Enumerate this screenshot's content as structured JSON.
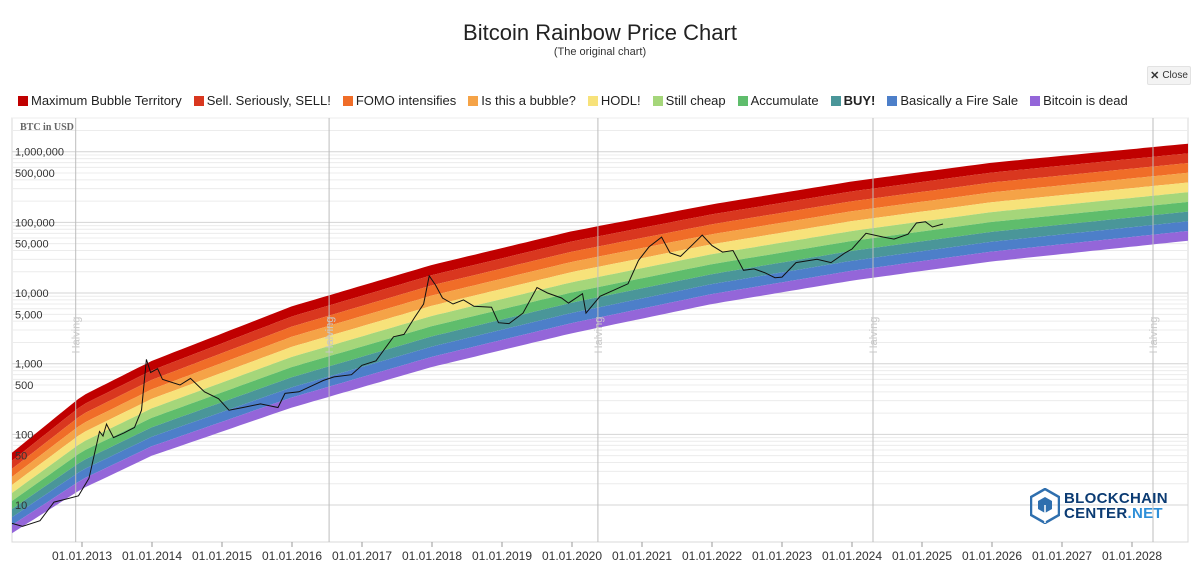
{
  "header": {
    "title": "Bitcoin Rainbow Price Chart",
    "subtitle": "(The original chart)",
    "close_label": "Close"
  },
  "legend": [
    {
      "label": "Maximum Bubble Territory",
      "color": "#c00000",
      "bold": false
    },
    {
      "label": "Sell. Seriously, SELL!",
      "color": "#d9371f",
      "bold": false
    },
    {
      "label": "FOMO intensifies",
      "color": "#f06d28",
      "bold": false
    },
    {
      "label": "Is this a bubble?",
      "color": "#f5a347",
      "bold": false
    },
    {
      "label": "HODL!",
      "color": "#f7e27a",
      "bold": false
    },
    {
      "label": "Still cheap",
      "color": "#a5d67a",
      "bold": false
    },
    {
      "label": "Accumulate",
      "color": "#5fbd6c",
      "bold": false
    },
    {
      "label": "BUY!",
      "color": "#4a9699",
      "bold": true
    },
    {
      "label": "Basically a Fire Sale",
      "color": "#4d7fc9",
      "bold": false
    },
    {
      "label": "Bitcoin is dead",
      "color": "#9466d9",
      "bold": false
    }
  ],
  "brand": {
    "line1": "BLOCKCHAIN",
    "line2": "CENTER",
    "line2_suffix": ".NET"
  },
  "chart_data": {
    "type": "line",
    "title": "Bitcoin Rainbow Price Chart",
    "ylabel": "BTC in USD",
    "yscale": "log",
    "ylim": [
      3,
      3000000
    ],
    "xlim": [
      2012.0,
      2028.8
    ],
    "y_ticks": [
      {
        "v": 1000000,
        "label": "1,000,000"
      },
      {
        "v": 500000,
        "label": "500,000"
      },
      {
        "v": 100000,
        "label": "100,000"
      },
      {
        "v": 50000,
        "label": "50,000"
      },
      {
        "v": 10000,
        "label": "10,000"
      },
      {
        "v": 5000,
        "label": "5,000"
      },
      {
        "v": 1000,
        "label": "1,000"
      },
      {
        "v": 500,
        "label": "500"
      },
      {
        "v": 100,
        "label": "100"
      },
      {
        "v": 50,
        "label": "50"
      },
      {
        "v": 10,
        "label": "10"
      }
    ],
    "x_ticks": [
      {
        "v": 2013,
        "label": "01.01.2013"
      },
      {
        "v": 2014,
        "label": "01.01.2014"
      },
      {
        "v": 2015,
        "label": "01.01.2015"
      },
      {
        "v": 2016,
        "label": "01.01.2016"
      },
      {
        "v": 2017,
        "label": "01.01.2017"
      },
      {
        "v": 2018,
        "label": "01.01.2018"
      },
      {
        "v": 2019,
        "label": "01.01.2019"
      },
      {
        "v": 2020,
        "label": "01.01.2020"
      },
      {
        "v": 2021,
        "label": "01.01.2021"
      },
      {
        "v": 2022,
        "label": "01.01.2022"
      },
      {
        "v": 2023,
        "label": "01.01.2023"
      },
      {
        "v": 2024,
        "label": "01.01.2024"
      },
      {
        "v": 2025,
        "label": "01.01.2025"
      },
      {
        "v": 2026,
        "label": "01.01.2026"
      },
      {
        "v": 2027,
        "label": "01.01.2027"
      },
      {
        "v": 2028,
        "label": "01.01.2028"
      }
    ],
    "halvings": [
      {
        "x": 2012.91,
        "label": "Halving"
      },
      {
        "x": 2016.53,
        "label": "Halving"
      },
      {
        "x": 2020.37,
        "label": "Halving"
      },
      {
        "x": 2024.3,
        "label": "Halving"
      },
      {
        "x": 2028.3,
        "label": "Halving"
      }
    ],
    "bands": {
      "colors": [
        "#c00000",
        "#d9371f",
        "#f06d28",
        "#f5a347",
        "#f7e27a",
        "#a5d67a",
        "#5fbd6c",
        "#4a9699",
        "#4d7fc9",
        "#9466d9"
      ],
      "upper": [
        {
          "x": 2012.0,
          "y": 55
        },
        {
          "x": 2013.0,
          "y": 350
        },
        {
          "x": 2014.0,
          "y": 1100
        },
        {
          "x": 2016.0,
          "y": 6500
        },
        {
          "x": 2018.0,
          "y": 25000
        },
        {
          "x": 2020.0,
          "y": 75000
        },
        {
          "x": 2022.0,
          "y": 180000
        },
        {
          "x": 2024.0,
          "y": 380000
        },
        {
          "x": 2026.0,
          "y": 700000
        },
        {
          "x": 2028.8,
          "y": 1300000
        }
      ],
      "lower": [
        {
          "x": 2012.0,
          "y": 4
        },
        {
          "x": 2013.0,
          "y": 17
        },
        {
          "x": 2014.0,
          "y": 50
        },
        {
          "x": 2016.0,
          "y": 240
        },
        {
          "x": 2018.0,
          "y": 900
        },
        {
          "x": 2020.0,
          "y": 2700
        },
        {
          "x": 2022.0,
          "y": 7000
        },
        {
          "x": 2024.0,
          "y": 15000
        },
        {
          "x": 2026.0,
          "y": 28000
        },
        {
          "x": 2028.8,
          "y": 55000
        }
      ]
    },
    "series": [
      {
        "points": [
          {
            "x": 2012.0,
            "y": 5.5
          },
          {
            "x": 2012.15,
            "y": 5
          },
          {
            "x": 2012.4,
            "y": 6
          },
          {
            "x": 2012.6,
            "y": 11
          },
          {
            "x": 2012.75,
            "y": 12
          },
          {
            "x": 2012.95,
            "y": 13.5
          },
          {
            "x": 2013.1,
            "y": 24
          },
          {
            "x": 2013.25,
            "y": 110
          },
          {
            "x": 2013.3,
            "y": 95
          },
          {
            "x": 2013.35,
            "y": 140
          },
          {
            "x": 2013.45,
            "y": 90
          },
          {
            "x": 2013.6,
            "y": 105
          },
          {
            "x": 2013.75,
            "y": 125
          },
          {
            "x": 2013.85,
            "y": 220
          },
          {
            "x": 2013.92,
            "y": 1150
          },
          {
            "x": 2013.98,
            "y": 750
          },
          {
            "x": 2014.08,
            "y": 850
          },
          {
            "x": 2014.15,
            "y": 600
          },
          {
            "x": 2014.4,
            "y": 500
          },
          {
            "x": 2014.55,
            "y": 620
          },
          {
            "x": 2014.75,
            "y": 400
          },
          {
            "x": 2014.95,
            "y": 320
          },
          {
            "x": 2015.1,
            "y": 220
          },
          {
            "x": 2015.3,
            "y": 240
          },
          {
            "x": 2015.55,
            "y": 270
          },
          {
            "x": 2015.8,
            "y": 240
          },
          {
            "x": 2015.9,
            "y": 380
          },
          {
            "x": 2016.1,
            "y": 400
          },
          {
            "x": 2016.45,
            "y": 580
          },
          {
            "x": 2016.6,
            "y": 650
          },
          {
            "x": 2016.85,
            "y": 700
          },
          {
            "x": 2017.0,
            "y": 950
          },
          {
            "x": 2017.2,
            "y": 1100
          },
          {
            "x": 2017.45,
            "y": 2400
          },
          {
            "x": 2017.6,
            "y": 2600
          },
          {
            "x": 2017.75,
            "y": 4500
          },
          {
            "x": 2017.88,
            "y": 7000
          },
          {
            "x": 2017.96,
            "y": 17500
          },
          {
            "x": 2018.05,
            "y": 13000
          },
          {
            "x": 2018.15,
            "y": 8500
          },
          {
            "x": 2018.3,
            "y": 7000
          },
          {
            "x": 2018.45,
            "y": 8000
          },
          {
            "x": 2018.6,
            "y": 6500
          },
          {
            "x": 2018.85,
            "y": 6300
          },
          {
            "x": 2018.95,
            "y": 3800
          },
          {
            "x": 2019.1,
            "y": 3700
          },
          {
            "x": 2019.3,
            "y": 5200
          },
          {
            "x": 2019.5,
            "y": 12000
          },
          {
            "x": 2019.65,
            "y": 10000
          },
          {
            "x": 2019.85,
            "y": 8500
          },
          {
            "x": 2019.95,
            "y": 7200
          },
          {
            "x": 2020.15,
            "y": 9800
          },
          {
            "x": 2020.2,
            "y": 5200
          },
          {
            "x": 2020.4,
            "y": 9000
          },
          {
            "x": 2020.6,
            "y": 11000
          },
          {
            "x": 2020.8,
            "y": 13500
          },
          {
            "x": 2020.95,
            "y": 29000
          },
          {
            "x": 2021.1,
            "y": 45000
          },
          {
            "x": 2021.28,
            "y": 62000
          },
          {
            "x": 2021.4,
            "y": 37000
          },
          {
            "x": 2021.55,
            "y": 33000
          },
          {
            "x": 2021.7,
            "y": 46000
          },
          {
            "x": 2021.86,
            "y": 66000
          },
          {
            "x": 2022.0,
            "y": 47000
          },
          {
            "x": 2022.15,
            "y": 38000
          },
          {
            "x": 2022.3,
            "y": 40000
          },
          {
            "x": 2022.45,
            "y": 21000
          },
          {
            "x": 2022.6,
            "y": 22000
          },
          {
            "x": 2022.75,
            "y": 19500
          },
          {
            "x": 2022.9,
            "y": 16500
          },
          {
            "x": 2023.0,
            "y": 16800
          },
          {
            "x": 2023.2,
            "y": 27000
          },
          {
            "x": 2023.5,
            "y": 30000
          },
          {
            "x": 2023.7,
            "y": 27000
          },
          {
            "x": 2023.9,
            "y": 37000
          },
          {
            "x": 2024.0,
            "y": 42000
          },
          {
            "x": 2024.2,
            "y": 70000
          },
          {
            "x": 2024.45,
            "y": 62000
          },
          {
            "x": 2024.6,
            "y": 58000
          },
          {
            "x": 2024.8,
            "y": 68000
          },
          {
            "x": 2024.92,
            "y": 98000
          },
          {
            "x": 2025.05,
            "y": 102000
          },
          {
            "x": 2025.15,
            "y": 86000
          },
          {
            "x": 2025.3,
            "y": 95000
          }
        ]
      }
    ]
  }
}
